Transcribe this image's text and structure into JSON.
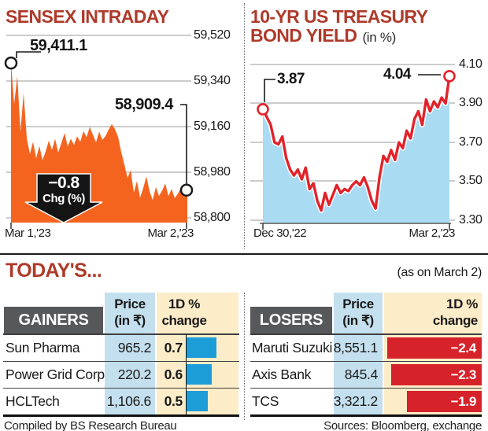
{
  "colors": {
    "title_red": "#ae3a2a",
    "sensex_orange": "#f4641f",
    "yield_line_red": "#e2222a",
    "yield_fill_blue": "#a9dbf3",
    "gain_bar_blue": "#1d9dd8",
    "loss_bar_red": "#d6222b",
    "price_col_blue": "#c4e0ef",
    "change_col_cream": "#fdecc8",
    "table_header_gray": "#57585a",
    "badge_black": "#141414"
  },
  "chart_data": [
    {
      "type": "area",
      "title": "SENSEX INTRADAY",
      "xticklabels": [
        "Mar 1,'23",
        "Mar 2,'23"
      ],
      "yticks": [
        "59,520",
        "59,340",
        "59,160",
        "58,980",
        "58,800"
      ],
      "ytick_values": [
        59520,
        59340,
        59160,
        58980,
        58800
      ],
      "ylim": [
        58800,
        59520
      ],
      "open_label": "59,411.1",
      "close_label": "58,909.4",
      "badge": {
        "value": "−0.8",
        "label": "Chg (%)"
      },
      "fill_color": "#f4641f",
      "legend": "off",
      "grid": "horizontal",
      "values": [
        59411,
        59250,
        59359,
        59140,
        59293,
        59115,
        59052,
        59100,
        59035,
        59084,
        59028,
        59062,
        59105,
        59068,
        59112,
        59058,
        59095,
        59135,
        59082,
        59112,
        59088,
        59122,
        59100,
        59142,
        59118,
        59158,
        59128,
        59098,
        59140,
        59108,
        59122,
        59148,
        59170,
        59150,
        59120,
        59060,
        59010,
        58958,
        58988,
        58900,
        58945,
        58880,
        58918,
        58964,
        58905,
        58870,
        58922,
        58886,
        58908,
        58936,
        58886,
        58914,
        58878,
        58896,
        58920,
        58882,
        58909.4
      ]
    },
    {
      "type": "line-area",
      "title": "10-YR US TREASURY BOND YIELD",
      "title_lines": [
        "10-YR US TREASURY",
        "BOND YIELD"
      ],
      "unit": "(in %)",
      "xticklabels": [
        "Dec 30,'22",
        "Mar 2,'23"
      ],
      "yticks": [
        "4.10",
        "3.90",
        "3.70",
        "3.50",
        "3.30"
      ],
      "ytick_values": [
        4.1,
        3.9,
        3.7,
        3.5,
        3.3
      ],
      "ylim": [
        3.3,
        4.1
      ],
      "start_label": "3.87",
      "end_label": "4.04",
      "line_color": "#e2222a",
      "fill_color": "#a9dbf3",
      "legend": "off",
      "grid": "horizontal",
      "values": [
        3.87,
        3.83,
        3.79,
        3.7,
        3.69,
        3.73,
        3.62,
        3.56,
        3.53,
        3.56,
        3.51,
        3.57,
        3.46,
        3.49,
        3.4,
        3.35,
        3.44,
        3.38,
        3.43,
        3.48,
        3.44,
        3.46,
        3.45,
        3.48,
        3.5,
        3.48,
        3.52,
        3.47,
        3.4,
        3.36,
        3.52,
        3.63,
        3.6,
        3.66,
        3.61,
        3.7,
        3.67,
        3.76,
        3.72,
        3.82,
        3.86,
        3.79,
        3.92,
        3.86,
        3.91,
        3.88,
        3.93,
        3.9,
        4.04
      ]
    }
  ],
  "today": {
    "title": "TODAY'S...",
    "as_on": "(as on March 2)"
  },
  "tables": {
    "gainers": {
      "label": "GAINERS",
      "price_header_line1": "Price",
      "price_header_line2": "(in ₹)",
      "change_header_line1": "1D %",
      "change_header_line2": "change",
      "rows": [
        {
          "name": "Sun Pharma",
          "price": "965.2",
          "change": "0.7",
          "change_value": 0.7
        },
        {
          "name": "Power Grid Corp",
          "price": "220.2",
          "change": "0.6",
          "change_value": 0.6
        },
        {
          "name": "HCLTech",
          "price": "1,106.6",
          "change": "0.5",
          "change_value": 0.5
        }
      ]
    },
    "losers": {
      "label": "LOSERS",
      "price_header_line1": "Price",
      "price_header_line2": "(in ₹)",
      "change_header_line1": "1D %",
      "change_header_line2": "change",
      "rows": [
        {
          "name": "Maruti Suzuki",
          "price": "8,551.1",
          "change": "−2.4",
          "change_value": -2.4
        },
        {
          "name": "Axis Bank",
          "price": "845.4",
          "change": "−2.3",
          "change_value": -2.3
        },
        {
          "name": "TCS",
          "price": "3,321.2",
          "change": "−1.9",
          "change_value": -1.9
        }
      ]
    }
  },
  "footer": {
    "left": "Compiled by BS Research Bureau",
    "right": "Sources: Bloomberg, exchange"
  }
}
